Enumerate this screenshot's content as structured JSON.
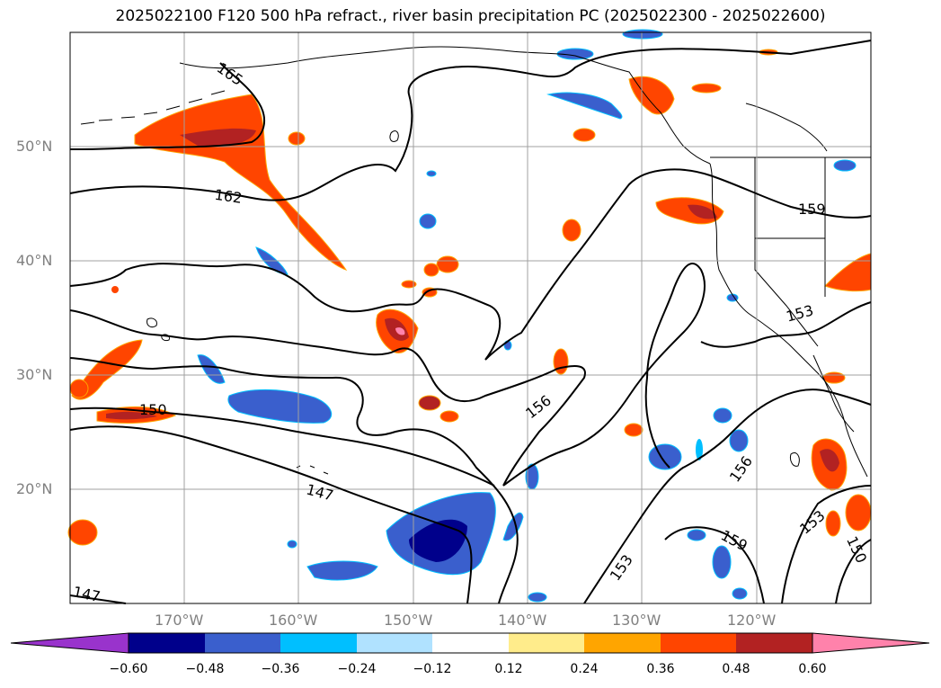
{
  "title": "2025022100 F120 500 hPa refract., river basin precipitation PC (2025022300 - 2025022600)",
  "map": {
    "lon_range": [
      -180,
      -110
    ],
    "lat_range": [
      10,
      60
    ],
    "lat_ticks": [
      "50°N",
      "40°N",
      "30°N",
      "20°N"
    ],
    "lon_ticks": [
      "170°W",
      "160°W",
      "150°W",
      "140°W",
      "130°W",
      "120°W"
    ],
    "contour_labels": [
      "165",
      "162",
      "159",
      "153",
      "156",
      "150",
      "147",
      "156",
      "153",
      "159",
      "153",
      "150",
      "147"
    ],
    "contour_color": "#000000",
    "coastline_color": "#000000",
    "grid_color": "#a0a0a0"
  },
  "colorbar": {
    "tick_labels": [
      "−0.60",
      "−0.48",
      "−0.36",
      "−0.24",
      "−0.12",
      "0.12",
      "0.24",
      "0.36",
      "0.48",
      "0.60"
    ],
    "colors": [
      "#9933cc",
      "#00008b",
      "#3a5fcd",
      "#00bfff",
      "#b0e2ff",
      "#ffffff",
      "#ffec8b",
      "#ffa500",
      "#ff4500",
      "#b22222",
      "#ff82ab"
    ],
    "extend": "both"
  }
}
